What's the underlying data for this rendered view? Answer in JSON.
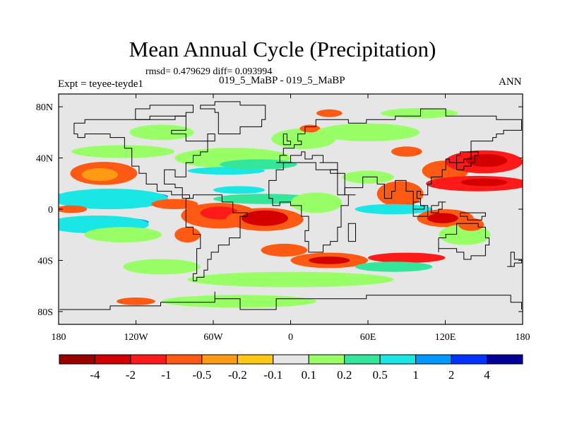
{
  "figure": {
    "title": "Mean Annual Cycle (Precipitation)",
    "stats": "rmsd= 0.479629 diff= 0.093994",
    "expt": "Expt = teyee-teyde1",
    "case": "019_5_MaBP - 019_5_MaBP",
    "season": "ANN"
  },
  "map": {
    "projection": "cylindrical-equidistant",
    "lon_range": [
      -180,
      180
    ],
    "lat_range": [
      -90,
      90
    ],
    "background_color": "#e6e6e6",
    "x_ticks": [
      {
        "lon": -180,
        "label": "180"
      },
      {
        "lon": -120,
        "label": "120W"
      },
      {
        "lon": -60,
        "label": "60W"
      },
      {
        "lon": 0,
        "label": "0"
      },
      {
        "lon": 60,
        "label": "60E"
      },
      {
        "lon": 120,
        "label": "120E"
      },
      {
        "lon": 180,
        "label": "180"
      }
    ],
    "y_ticks": [
      {
        "lat": 80,
        "label": "80N"
      },
      {
        "lat": 40,
        "label": "40N"
      },
      {
        "lat": 0,
        "label": "0"
      },
      {
        "lat": -40,
        "label": "40S"
      },
      {
        "lat": -80,
        "label": "80S"
      }
    ],
    "regions": [
      {
        "name": "north-pacific-dry-blob",
        "lon": -145,
        "lat": 28,
        "rx": 26,
        "ry": 9,
        "cat": 3
      },
      {
        "name": "north-pacific-dry-core",
        "lon": -148,
        "lat": 27,
        "rx": 14,
        "ry": 5,
        "cat": 4
      },
      {
        "name": "north-pacific-wet-band",
        "lon": -130,
        "lat": 45,
        "rx": 40,
        "ry": 5,
        "cat": 7
      },
      {
        "name": "canada-wet",
        "lon": -100,
        "lat": 60,
        "rx": 25,
        "ry": 6,
        "cat": 7
      },
      {
        "name": "n-atlantic-wet-band",
        "lon": -45,
        "lat": 40,
        "rx": 45,
        "ry": 8,
        "cat": 7
      },
      {
        "name": "n-atlantic-blue",
        "lon": -50,
        "lat": 30,
        "rx": 30,
        "ry": 3,
        "cat": 9
      },
      {
        "name": "atlantic-subtropical-teal",
        "lon": -25,
        "lat": 35,
        "rx": 30,
        "ry": 4,
        "cat": 8
      },
      {
        "name": "europe-wet",
        "lon": 10,
        "lat": 55,
        "rx": 25,
        "ry": 8,
        "cat": 7
      },
      {
        "name": "europe-dry",
        "lon": 15,
        "lat": 63,
        "rx": 8,
        "ry": 3,
        "cat": 3
      },
      {
        "name": "siberia-wet",
        "lon": 60,
        "lat": 60,
        "rx": 40,
        "ry": 7,
        "cat": 7
      },
      {
        "name": "siberia-dry",
        "lon": 90,
        "lat": 45,
        "rx": 12,
        "ry": 4,
        "cat": 3
      },
      {
        "name": "east-asia-dry",
        "lon": 120,
        "lat": 30,
        "rx": 18,
        "ry": 8,
        "cat": 3
      },
      {
        "name": "nw-pacific-dry-outer",
        "lon": 150,
        "lat": 37,
        "rx": 30,
        "ry": 9,
        "cat": 2
      },
      {
        "name": "nw-pacific-dry-core",
        "lon": 152,
        "lat": 38,
        "rx": 16,
        "ry": 5,
        "cat": 1
      },
      {
        "name": "pacific-subtrop-dry-outer",
        "lon": 145,
        "lat": 20,
        "rx": 40,
        "ry": 6,
        "cat": 2
      },
      {
        "name": "pacific-subtrop-dry-core",
        "lon": 150,
        "lat": 21,
        "rx": 18,
        "ry": 3,
        "cat": 1
      },
      {
        "name": "arabia-wet",
        "lon": 60,
        "lat": 25,
        "rx": 20,
        "ry": 5,
        "cat": 7
      },
      {
        "name": "india-dry",
        "lon": 85,
        "lat": 12,
        "rx": 18,
        "ry": 10,
        "cat": 3
      },
      {
        "name": "pacific-itcz-blue",
        "lon": -140,
        "lat": 10,
        "rx": 45,
        "ry": 4,
        "cat": 10
      },
      {
        "name": "pacific-itcz-cyan",
        "lon": -140,
        "lat": 8,
        "rx": 45,
        "ry": 8,
        "cat": 9
      },
      {
        "name": "e-pacific-dry",
        "lon": -90,
        "lat": 4,
        "rx": 18,
        "ry": 4,
        "cat": 3
      },
      {
        "name": "amazon-dry-outer",
        "lon": -55,
        "lat": -5,
        "rx": 30,
        "ry": 10,
        "cat": 3
      },
      {
        "name": "amazon-dry-core",
        "lon": -55,
        "lat": -3,
        "rx": 15,
        "ry": 5,
        "cat": 2
      },
      {
        "name": "s-atlantic-dry-outer",
        "lon": -20,
        "lat": -8,
        "rx": 30,
        "ry": 9,
        "cat": 3
      },
      {
        "name": "s-atlantic-dry-core",
        "lon": -20,
        "lat": -7,
        "rx": 18,
        "ry": 6,
        "cat": 1
      },
      {
        "name": "atlantic-equator-cyan",
        "lon": -20,
        "lat": 8,
        "rx": 40,
        "ry": 4,
        "cat": 8
      },
      {
        "name": "africa-wet",
        "lon": 20,
        "lat": 5,
        "rx": 20,
        "ry": 8,
        "cat": 7
      },
      {
        "name": "indian-ocean-cyan",
        "lon": 80,
        "lat": 0,
        "rx": 30,
        "ry": 4,
        "cat": 9
      },
      {
        "name": "indonesia-dry-outer",
        "lon": 120,
        "lat": -7,
        "rx": 22,
        "ry": 7,
        "cat": 3
      },
      {
        "name": "indonesia-dry-core",
        "lon": 118,
        "lat": -7,
        "rx": 12,
        "ry": 4,
        "cat": 1
      },
      {
        "name": "pacific-spcz-blue",
        "lon": -150,
        "lat": -10,
        "rx": 40,
        "ry": 4,
        "cat": 10
      },
      {
        "name": "pacific-spcz-cyan",
        "lon": -150,
        "lat": -12,
        "rx": 40,
        "ry": 7,
        "cat": 9
      },
      {
        "name": "south-pacific-wet",
        "lon": -130,
        "lat": -20,
        "rx": 30,
        "ry": 6,
        "cat": 7
      },
      {
        "name": "south-atlantic-dry",
        "lon": -5,
        "lat": -32,
        "rx": 18,
        "ry": 5,
        "cat": 3
      },
      {
        "name": "south-africa-dry-outer",
        "lon": 30,
        "lat": -40,
        "rx": 30,
        "ry": 6,
        "cat": 3
      },
      {
        "name": "south-africa-dry-core",
        "lon": 30,
        "lat": -40,
        "rx": 16,
        "ry": 3,
        "cat": 1
      },
      {
        "name": "south-indian-dry",
        "lon": 90,
        "lat": -38,
        "rx": 30,
        "ry": 4,
        "cat": 2
      },
      {
        "name": "australia-wet",
        "lon": 135,
        "lat": -20,
        "rx": 20,
        "ry": 8,
        "cat": 7
      },
      {
        "name": "australia-dry",
        "lon": 140,
        "lat": -12,
        "rx": 10,
        "ry": 5,
        "cat": 3
      },
      {
        "name": "southern-ocean-wet",
        "lon": 0,
        "lat": -55,
        "rx": 80,
        "ry": 6,
        "cat": 7
      },
      {
        "name": "southern-ocean-teal",
        "lon": 80,
        "lat": -45,
        "rx": 30,
        "ry": 4,
        "cat": 8
      },
      {
        "name": "south-pacific-wet-2",
        "lon": -100,
        "lat": -45,
        "rx": 30,
        "ry": 6,
        "cat": 7
      },
      {
        "name": "antarctic-wet",
        "lon": -40,
        "lat": -72,
        "rx": 60,
        "ry": 5,
        "cat": 7
      },
      {
        "name": "antarctic-dry",
        "lon": -120,
        "lat": -72,
        "rx": 15,
        "ry": 3,
        "cat": 3
      },
      {
        "name": "arctic-wet",
        "lon": 100,
        "lat": 75,
        "rx": 30,
        "ry": 4,
        "cat": 7
      },
      {
        "name": "arctic-dry",
        "lon": 30,
        "lat": 75,
        "rx": 10,
        "ry": 3,
        "cat": 3
      },
      {
        "name": "se-pacific-dry",
        "lon": -80,
        "lat": -20,
        "rx": 10,
        "ry": 6,
        "cat": 3
      },
      {
        "name": "atlantic-n-cyan",
        "lon": -40,
        "lat": 15,
        "rx": 20,
        "ry": 3,
        "cat": 9
      },
      {
        "name": "c-pacific-dry",
        "lon": -170,
        "lat": 0,
        "rx": 12,
        "ry": 3,
        "cat": 3
      }
    ]
  },
  "colorbar": {
    "colors": [
      "#9a0000",
      "#d40000",
      "#ff1a1a",
      "#ff5a14",
      "#ff9a14",
      "#ffc814",
      "#e6e6e6",
      "#99ff66",
      "#33e699",
      "#1ae6e6",
      "#0099ff",
      "#0033ff",
      "#000099"
    ],
    "labels": [
      "-4",
      "-2",
      "-1",
      "-0.5",
      "-0.2",
      "-0.1",
      "0.1",
      "0.2",
      "0.5",
      "1",
      "2",
      "4"
    ]
  }
}
